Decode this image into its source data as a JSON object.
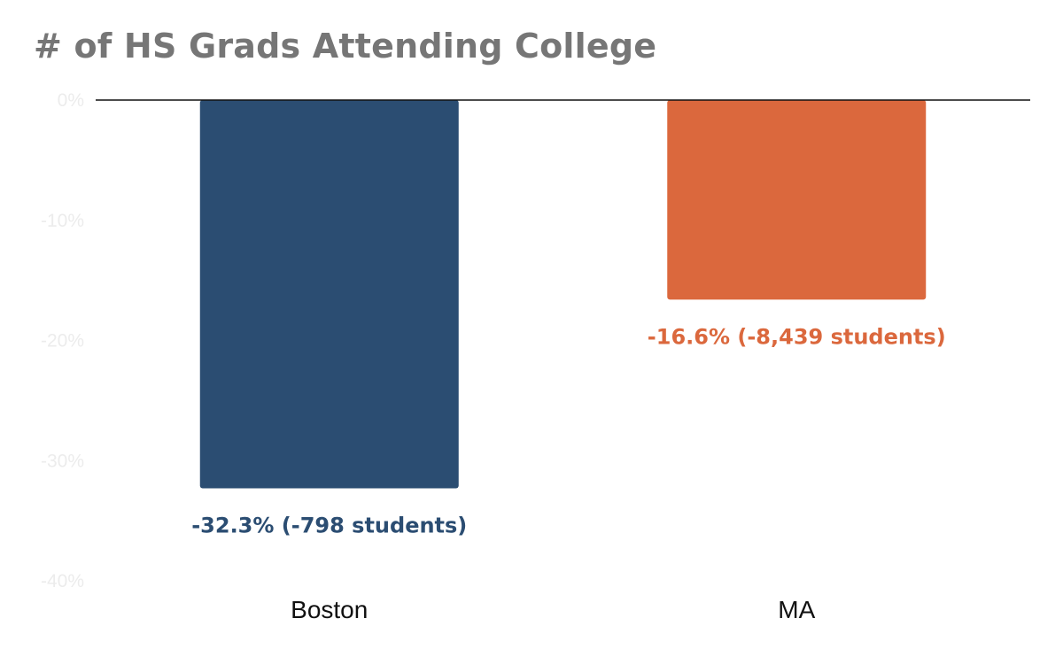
{
  "title": "# of HS Grads Attending College",
  "chart_data": {
    "type": "bar",
    "title": "# of HS Grads Attending College",
    "xlabel": "",
    "ylabel": "",
    "categories": [
      "Boston",
      "MA"
    ],
    "values": [
      -32.3,
      -16.6
    ],
    "data_labels": [
      "-32.3% (-798 students)",
      "-16.6% (-8,439 students)"
    ],
    "bar_colors": [
      "#2b4d72",
      "#db683d"
    ],
    "ylim": [
      -40,
      0
    ],
    "y_ticks": [
      0,
      -10,
      -20,
      -30,
      -40
    ],
    "y_tick_labels": [
      "0%",
      "-10%",
      "-20%",
      "-30%",
      "-40%"
    ],
    "grid": false,
    "legend": "none"
  }
}
